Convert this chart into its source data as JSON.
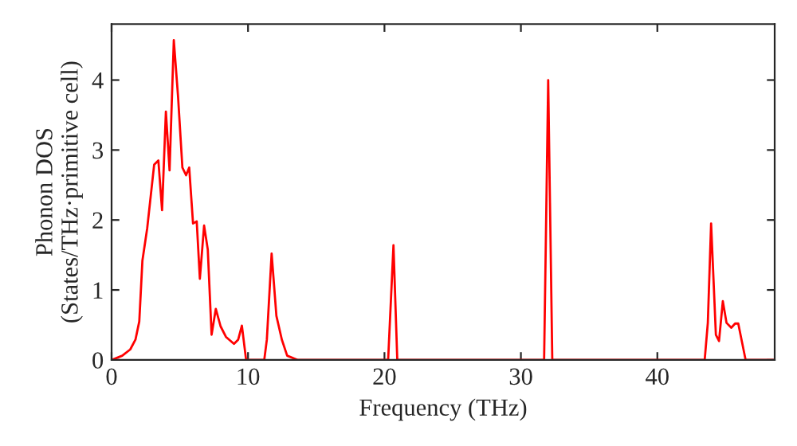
{
  "chart_data": {
    "type": "line",
    "xlabel": "Frequency (THz)",
    "ylabel": "Phonon DOS\n(States/THz·primitive cell)",
    "series": [
      {
        "color": "#ff0000",
        "x": [
          0,
          0.78,
          1.37,
          1.75,
          2.03,
          2.26,
          2.61,
          3.12,
          3.43,
          3.7,
          3.98,
          4.25,
          4.56,
          4.87,
          5.19,
          5.46,
          5.69,
          5.97,
          6.24,
          6.47,
          6.78,
          7.05,
          7.33,
          7.64,
          7.99,
          8.38,
          8.97,
          9.28,
          9.55,
          9.86,
          11.19,
          11.38,
          11.73,
          12.08,
          12.48,
          12.87,
          13.65,
          20.27,
          20.66,
          20.94,
          31.7,
          32.0,
          32.3,
          43.47,
          43.7,
          43.94,
          44.29,
          44.52,
          44.8,
          45.07,
          45.42,
          45.7,
          45.93,
          46.47,
          48.5
        ],
        "values": [
          0,
          0.06,
          0.15,
          0.29,
          0.55,
          1.42,
          1.88,
          2.79,
          2.85,
          2.14,
          3.55,
          2.71,
          4.57,
          3.77,
          2.75,
          2.64,
          2.75,
          1.95,
          1.98,
          1.16,
          1.92,
          1.58,
          0.36,
          0.73,
          0.48,
          0.33,
          0.23,
          0.29,
          0.49,
          0,
          0,
          0.29,
          1.52,
          0.63,
          0.29,
          0.06,
          0,
          0,
          1.64,
          0,
          0,
          4.0,
          0,
          0,
          0.53,
          1.95,
          0.36,
          0.27,
          0.84,
          0.53,
          0.46,
          0.52,
          0.52,
          0,
          0
        ]
      }
    ],
    "xlim": [
      0,
      48.6
    ],
    "ylim": [
      0,
      4.8
    ],
    "xticks": [
      0,
      10,
      20,
      30,
      40
    ],
    "yticks": [
      0,
      1,
      2,
      3,
      4
    ]
  }
}
